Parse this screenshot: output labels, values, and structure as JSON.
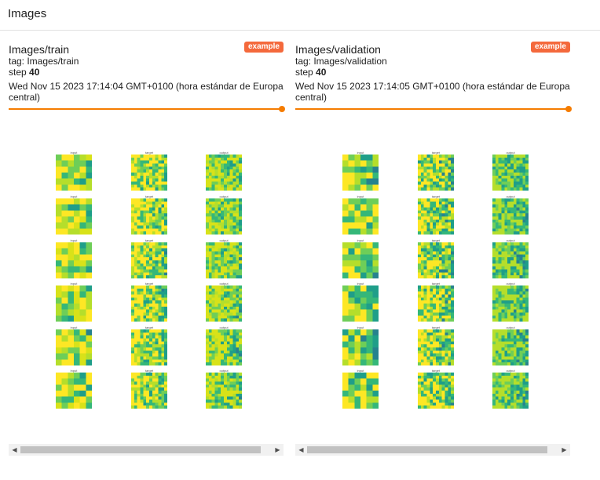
{
  "header": {
    "title": "Images"
  },
  "cards": [
    {
      "title": "Images/train",
      "badge": "example",
      "tag": "tag: Images/train",
      "step_label": "step",
      "step_value": "40",
      "date": "Wed Nov 15 2023 17:14:04 GMT+0100 (hora estándar de Europa central)",
      "columns": [
        {
          "label": "input",
          "palette": [
            "#fde725",
            "#d8e219",
            "#b5de2b",
            "#6ece58",
            "#35b779",
            "#1f9e89",
            "#26828e",
            "#31688e",
            "#3e4989",
            "#482878",
            "#440154"
          ]
        },
        {
          "label": "target",
          "palette": [
            "#fde725",
            "#b5de2b",
            "#6ece58",
            "#35b779",
            "#1f9e89",
            "#26828e",
            "#31688e",
            "#3e4989",
            "#482878"
          ]
        },
        {
          "label": "output",
          "palette": [
            "#d8e219",
            "#b5de2b",
            "#6ece58",
            "#35b779",
            "#1f9e89",
            "#26828e",
            "#31688e",
            "#3e4989",
            "#482878"
          ]
        }
      ]
    },
    {
      "title": "Images/validation",
      "badge": "example",
      "tag": "tag: Images/validation",
      "step_label": "step",
      "step_value": "40",
      "date": "Wed Nov 15 2023 17:14:05 GMT+0100 (hora estándar de Europa central)",
      "columns": [
        {
          "label": "input",
          "palette": [
            "#fde725",
            "#b5de2b",
            "#6ece58",
            "#35b779",
            "#1f9e89",
            "#26828e",
            "#31688e",
            "#3e4989",
            "#482878",
            "#440154"
          ]
        },
        {
          "label": "target",
          "palette": [
            "#fde725",
            "#b5de2b",
            "#6ece58",
            "#35b779",
            "#1f9e89",
            "#26828e",
            "#31688e",
            "#3e4989",
            "#482878",
            "#440154"
          ]
        },
        {
          "label": "output",
          "palette": [
            "#b5de2b",
            "#6ece58",
            "#35b779",
            "#1f9e89",
            "#26828e",
            "#31688e",
            "#3e4989",
            "#482878"
          ]
        }
      ]
    }
  ],
  "scroll_left_icon": "chevron-left-icon",
  "scroll_right_icon": "chevron-right-icon"
}
